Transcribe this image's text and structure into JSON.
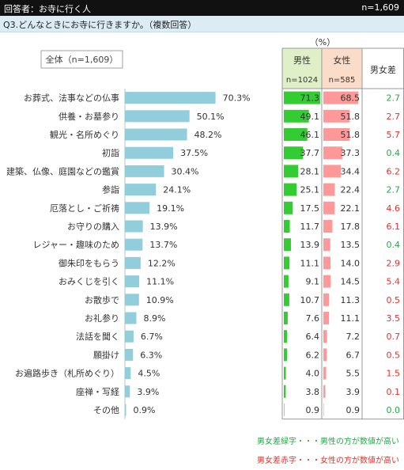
{
  "header": {
    "title": "回答者：お寺に行く人",
    "count": "n=1,609"
  },
  "question": "Q3.どんなときにお寺に行きますか。（複数回答）",
  "chart_data": {
    "type": "bar",
    "orientation": "horizontal",
    "unit_label": "（%）",
    "total_label": "全体（n=1,609）",
    "categories": [
      "お葬式、法事などの仏事",
      "供養・お墓参り",
      "観光・名所めぐり",
      "初詣",
      "建築、仏像、庭園などの鑑賞",
      "参詣",
      "厄落とし・ご祈祷",
      "お守りの購入",
      "レジャー・趣味のため",
      "御朱印をもらう",
      "おみくじを引く",
      "お散歩で",
      "お礼参り",
      "法話を聞く",
      "願掛け",
      "お遍路歩き（札所めぐり）",
      "座禅・写経",
      "その他"
    ],
    "values": [
      70.3,
      50.1,
      48.2,
      37.5,
      30.4,
      24.1,
      19.1,
      13.9,
      13.7,
      12.2,
      11.1,
      10.9,
      8.9,
      6.7,
      6.3,
      4.5,
      3.9,
      0.9
    ],
    "value_labels": [
      "70.3%",
      "50.1%",
      "48.2%",
      "37.5%",
      "30.4%",
      "24.1%",
      "19.1%",
      "13.9%",
      "13.7%",
      "12.2%",
      "11.1%",
      "10.9%",
      "8.9%",
      "6.7%",
      "6.3%",
      "4.5%",
      "3.9%",
      "0.9%"
    ],
    "xlim": [
      0,
      100
    ],
    "table": {
      "columns": [
        {
          "label": "男性",
          "n": "n=1024",
          "color": "#33cc33",
          "header_bg": "#dff0c8"
        },
        {
          "label": "女性",
          "n": "n=585",
          "color": "#ff9999",
          "header_bg": "#fbdcc8"
        },
        {
          "label": "男女差"
        }
      ],
      "male": [
        71.3,
        49.1,
        46.1,
        37.7,
        28.1,
        25.1,
        17.5,
        11.7,
        13.9,
        11.1,
        9.1,
        10.7,
        7.6,
        6.4,
        6.2,
        4.0,
        3.8,
        0.9
      ],
      "female": [
        68.5,
        51.8,
        51.8,
        37.3,
        34.4,
        22.4,
        22.1,
        17.8,
        13.5,
        14.0,
        14.5,
        11.3,
        11.1,
        7.2,
        6.7,
        5.5,
        3.9,
        0.9
      ],
      "diff": [
        {
          "text": "2.7",
          "side": "male"
        },
        {
          "text": "2.7",
          "side": "female"
        },
        {
          "text": "5.7",
          "side": "female"
        },
        {
          "text": "0.4",
          "side": "male"
        },
        {
          "text": "6.2",
          "side": "female"
        },
        {
          "text": "2.7",
          "side": "male"
        },
        {
          "text": "4.6",
          "side": "female"
        },
        {
          "text": "6.1",
          "side": "female"
        },
        {
          "text": "0.4",
          "side": "male"
        },
        {
          "text": "2.9",
          "side": "female"
        },
        {
          "text": "5.4",
          "side": "female"
        },
        {
          "text": "0.5",
          "side": "female"
        },
        {
          "text": "3.5",
          "side": "female"
        },
        {
          "text": "0.7",
          "side": "female"
        },
        {
          "text": "0.5",
          "side": "female"
        },
        {
          "text": "1.5",
          "side": "female"
        },
        {
          "text": "0.1",
          "side": "female"
        },
        {
          "text": "0.0",
          "side": "male"
        }
      ]
    },
    "colors": {
      "bar": "#92cddc",
      "male_text": "#22aa44",
      "female_text": "#e8302c"
    }
  },
  "notes": {
    "green": "男女差緑字・・・男性の方が数値が高い",
    "red": "男女差赤字・・・女性の方が数値が高い"
  }
}
